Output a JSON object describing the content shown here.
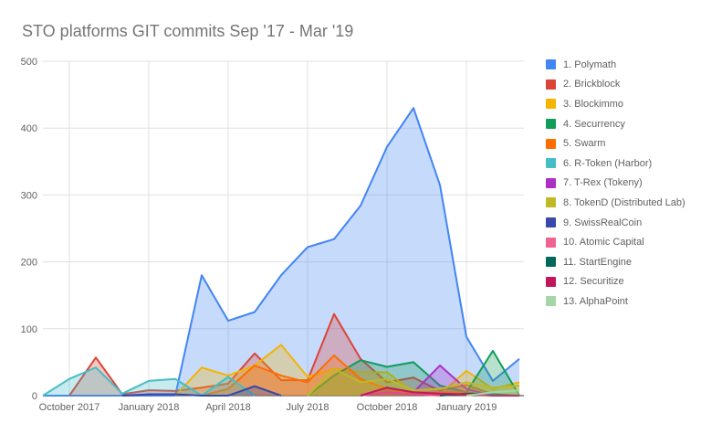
{
  "chart_data": {
    "type": "area",
    "title": "STO platforms GIT commits Sep '17 - Mar '19",
    "x": [
      "Sep 2017",
      "Oct 2017",
      "Nov 2017",
      "Dec 2017",
      "Jan 2018",
      "Feb 2018",
      "Mar 2018",
      "Apr 2018",
      "May 2018",
      "Jun 2018",
      "Jul 2018",
      "Aug 2018",
      "Sep 2018",
      "Oct 2018",
      "Nov 2018",
      "Dec 2018",
      "Jan 2019",
      "Feb 2019",
      "Mar 2019"
    ],
    "x_ticks": [
      {
        "label": "October 2017",
        "index": 1
      },
      {
        "label": "January 2018",
        "index": 4
      },
      {
        "label": "April 2018",
        "index": 7
      },
      {
        "label": "July 2018",
        "index": 10
      },
      {
        "label": "October 2018",
        "index": 13
      },
      {
        "label": "January 2019",
        "index": 16
      }
    ],
    "ylim": [
      0,
      500
    ],
    "y_ticks": [
      "0",
      "100",
      "200",
      "300",
      "400",
      "500"
    ],
    "grid": true,
    "legend": "right",
    "series": [
      {
        "name": "1. Polymath",
        "color": "#4285f4",
        "values": [
          0,
          0,
          0,
          0,
          0,
          0,
          180,
          112,
          125,
          180,
          222,
          234,
          284,
          372,
          430,
          315,
          88,
          22,
          55
        ]
      },
      {
        "name": "2. Brickblock",
        "color": "#db4437",
        "values": [
          null,
          0,
          57,
          2,
          8,
          7,
          12,
          18,
          63,
          23,
          23,
          122,
          55,
          20,
          27,
          7,
          16,
          2,
          0
        ]
      },
      {
        "name": "3. Blockimmo",
        "color": "#f4b400",
        "values": [
          null,
          null,
          null,
          null,
          null,
          0,
          42,
          30,
          45,
          76,
          28,
          40,
          35,
          35,
          5,
          2,
          37,
          10,
          20
        ]
      },
      {
        "name": "4. Securrency",
        "color": "#0f9d58",
        "values": [
          null,
          null,
          null,
          null,
          null,
          null,
          null,
          null,
          null,
          null,
          0,
          30,
          53,
          43,
          50,
          15,
          5,
          67,
          0
        ]
      },
      {
        "name": "5. Swarm",
        "color": "#ff6d01",
        "values": [
          null,
          null,
          null,
          null,
          null,
          null,
          0,
          10,
          45,
          30,
          20,
          60,
          25,
          10,
          5,
          5,
          5,
          0,
          0
        ]
      },
      {
        "name": "6. R-Token (Harbor)",
        "color": "#46bdc6",
        "values": [
          0,
          25,
          42,
          3,
          22,
          25,
          0,
          28,
          0,
          null,
          null,
          null,
          null,
          null,
          null,
          null,
          null,
          null,
          null
        ]
      },
      {
        "name": "7. T-Rex (Tokeny)",
        "color": "#ab30c4",
        "values": [
          null,
          null,
          null,
          null,
          null,
          null,
          null,
          null,
          null,
          null,
          null,
          null,
          null,
          null,
          5,
          45,
          10,
          0,
          0
        ]
      },
      {
        "name": "8. TokenD (Distributed Lab)",
        "color": "#c0b825",
        "values": [
          null,
          null,
          null,
          null,
          null,
          null,
          null,
          null,
          null,
          null,
          0,
          40,
          20,
          25,
          8,
          10,
          20,
          12,
          15
        ]
      },
      {
        "name": "9. SwissRealCoin",
        "color": "#3949ab",
        "values": [
          null,
          null,
          null,
          0,
          2,
          2,
          0,
          0,
          14,
          0,
          null,
          null,
          null,
          null,
          null,
          null,
          null,
          null,
          null
        ]
      },
      {
        "name": "10. Atomic Capital",
        "color": "#f06292",
        "values": [
          null,
          null,
          null,
          null,
          null,
          null,
          null,
          null,
          null,
          null,
          null,
          null,
          0,
          5,
          2,
          0,
          null,
          null,
          null
        ]
      },
      {
        "name": "11. StartEngine",
        "color": "#00695c",
        "values": [
          null,
          null,
          null,
          null,
          null,
          null,
          null,
          null,
          null,
          null,
          null,
          null,
          null,
          null,
          null,
          0,
          3,
          2,
          0
        ]
      },
      {
        "name": "12. Securitize",
        "color": "#c2185b",
        "values": [
          null,
          null,
          null,
          null,
          null,
          null,
          null,
          null,
          null,
          null,
          null,
          null,
          0,
          12,
          5,
          3,
          2,
          0,
          0
        ]
      },
      {
        "name": "13. AlphaPoint",
        "color": "#a5d6a7",
        "values": [
          null,
          null,
          null,
          null,
          null,
          null,
          null,
          null,
          null,
          null,
          null,
          null,
          null,
          null,
          null,
          null,
          0,
          5,
          8
        ]
      }
    ]
  }
}
